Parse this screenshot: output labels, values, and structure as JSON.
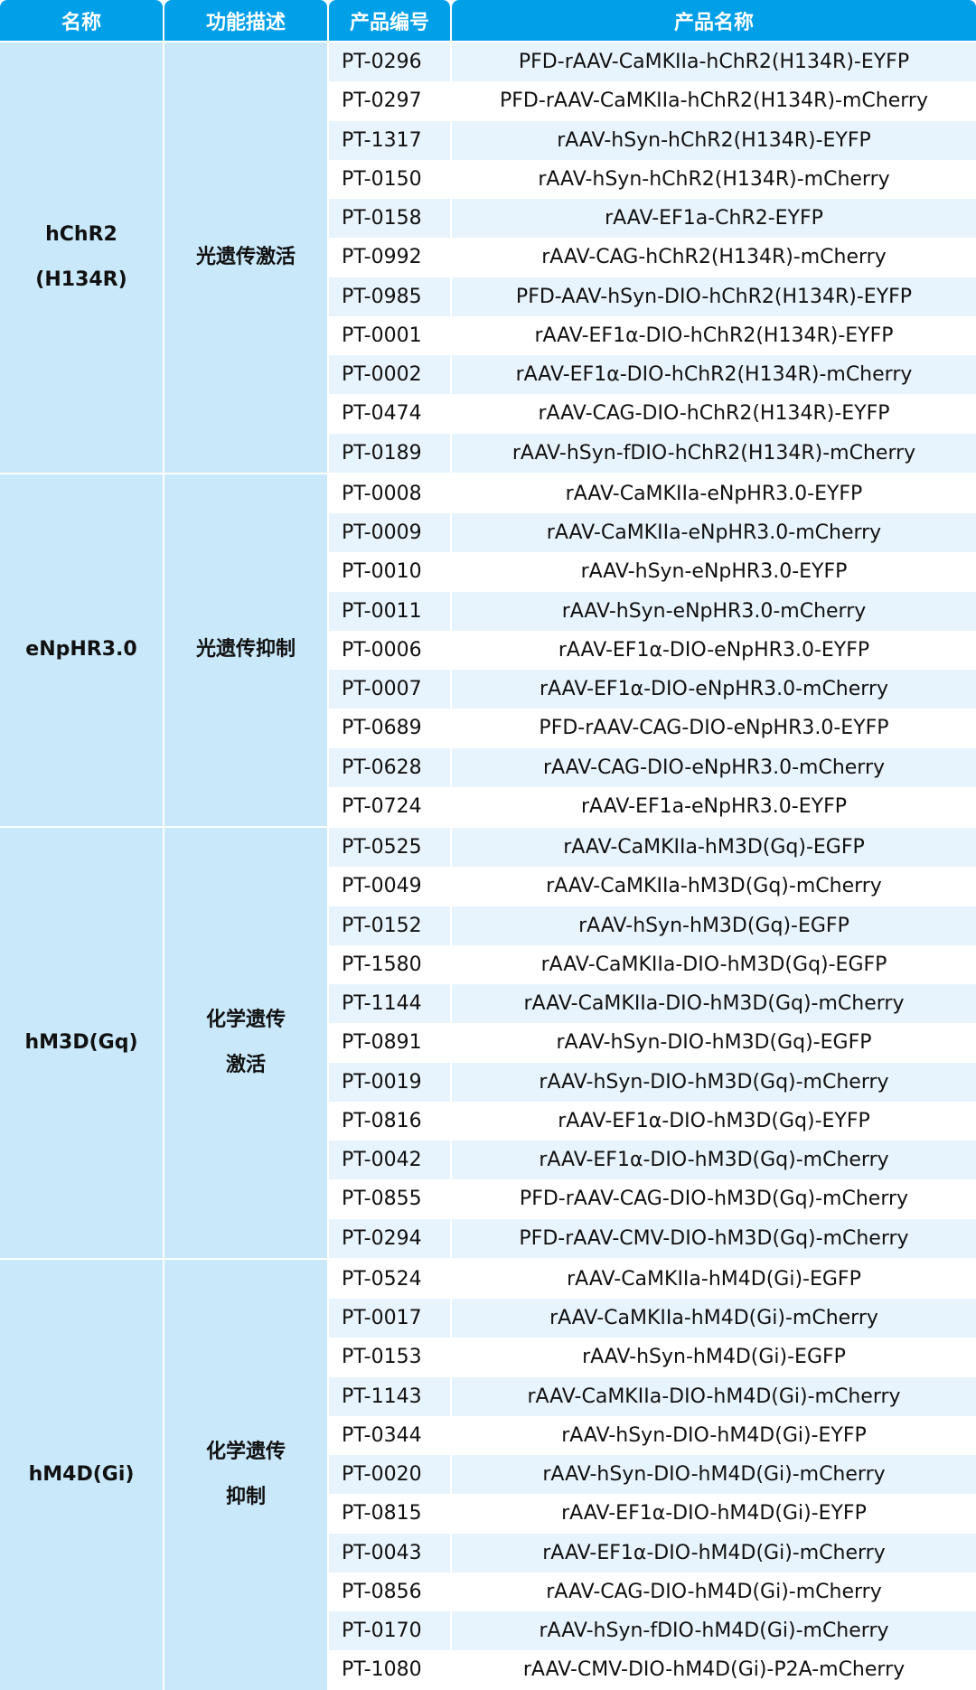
{
  "header": {
    "name": "名称",
    "function": "功能描述",
    "code": "产品编号",
    "product": "产品名称"
  },
  "colors": {
    "header": "#00a0e9",
    "group_cell": "#c9e8fa",
    "row_alt": "#e8f4fd"
  },
  "groups": [
    {
      "name": "hChR2\n(H134R)",
      "function": "光遗传激活",
      "products": [
        {
          "code": "PT-0296",
          "name": "PFD-rAAV-CaMKIIa-hChR2(H134R)-EYFP"
        },
        {
          "code": "PT-0297",
          "name": "PFD-rAAV-CaMKIIa-hChR2(H134R)-mCherry"
        },
        {
          "code": "PT-1317",
          "name": "rAAV-hSyn-hChR2(H134R)-EYFP"
        },
        {
          "code": "PT-0150",
          "name": "rAAV-hSyn-hChR2(H134R)-mCherry"
        },
        {
          "code": "PT-0158",
          "name": "rAAV-EF1a-ChR2-EYFP"
        },
        {
          "code": "PT-0992",
          "name": "rAAV-CAG-hChR2(H134R)-mCherry"
        },
        {
          "code": "PT-0985",
          "name": "PFD-AAV-hSyn-DIO-hChR2(H134R)-EYFP"
        },
        {
          "code": "PT-0001",
          "name": "rAAV-EF1α-DIO-hChR2(H134R)-EYFP"
        },
        {
          "code": "PT-0002",
          "name": "rAAV-EF1α-DIO-hChR2(H134R)-mCherry"
        },
        {
          "code": "PT-0474",
          "name": "rAAV-CAG-DIO-hChR2(H134R)-EYFP"
        },
        {
          "code": "PT-0189",
          "name": "rAAV-hSyn-fDIO-hChR2(H134R)-mCherry"
        }
      ]
    },
    {
      "name": "eNpHR3.0",
      "function": "光遗传抑制",
      "products": [
        {
          "code": "PT-0008",
          "name": "rAAV-CaMKIIa-eNpHR3.0-EYFP"
        },
        {
          "code": "PT-0009",
          "name": "rAAV-CaMKIIa-eNpHR3.0-mCherry"
        },
        {
          "code": "PT-0010",
          "name": "rAAV-hSyn-eNpHR3.0-EYFP"
        },
        {
          "code": "PT-0011",
          "name": "rAAV-hSyn-eNpHR3.0-mCherry"
        },
        {
          "code": "PT-0006",
          "name": "rAAV-EF1α-DIO-eNpHR3.0-EYFP"
        },
        {
          "code": "PT-0007",
          "name": "rAAV-EF1α-DIO-eNpHR3.0-mCherry"
        },
        {
          "code": "PT-0689",
          "name": "PFD-rAAV-CAG-DIO-eNpHR3.0-EYFP"
        },
        {
          "code": "PT-0628",
          "name": "rAAV-CAG-DIO-eNpHR3.0-mCherry"
        },
        {
          "code": "PT-0724",
          "name": "rAAV-EF1a-eNpHR3.0-EYFP"
        }
      ]
    },
    {
      "name": "hM3D(Gq)",
      "function": "化学遗传\n激活",
      "products": [
        {
          "code": "PT-0525",
          "name": "rAAV-CaMKIIa-hM3D(Gq)-EGFP"
        },
        {
          "code": "PT-0049",
          "name": "rAAV-CaMKIIa-hM3D(Gq)-mCherry"
        },
        {
          "code": "PT-0152",
          "name": "rAAV-hSyn-hM3D(Gq)-EGFP"
        },
        {
          "code": "PT-1580",
          "name": "rAAV-CaMKIIa-DIO-hM3D(Gq)-EGFP"
        },
        {
          "code": "PT-1144",
          "name": "rAAV-CaMKIIa-DIO-hM3D(Gq)-mCherry"
        },
        {
          "code": "PT-0891",
          "name": "rAAV-hSyn-DIO-hM3D(Gq)-EGFP"
        },
        {
          "code": "PT-0019",
          "name": "rAAV-hSyn-DIO-hM3D(Gq)-mCherry"
        },
        {
          "code": "PT-0816",
          "name": "rAAV-EF1α-DIO-hM3D(Gq)-EYFP"
        },
        {
          "code": "PT-0042",
          "name": "rAAV-EF1α-DIO-hM3D(Gq)-mCherry"
        },
        {
          "code": "PT-0855",
          "name": "PFD-rAAV-CAG-DIO-hM3D(Gq)-mCherry"
        },
        {
          "code": "PT-0294",
          "name": "PFD-rAAV-CMV-DIO-hM3D(Gq)-mCherry"
        }
      ]
    },
    {
      "name": "hM4D(Gi)",
      "function": "化学遗传\n抑制",
      "products": [
        {
          "code": "PT-0524",
          "name": "rAAV-CaMKIIa-hM4D(Gi)-EGFP"
        },
        {
          "code": "PT-0017",
          "name": "rAAV-CaMKIIa-hM4D(Gi)-mCherry"
        },
        {
          "code": "PT-0153",
          "name": "rAAV-hSyn-hM4D(Gi)-EGFP"
        },
        {
          "code": "PT-1143",
          "name": "rAAV-CaMKIIa-DIO-hM4D(Gi)-mCherry"
        },
        {
          "code": "PT-0344",
          "name": "rAAV-hSyn-DIO-hM4D(Gi)-EYFP"
        },
        {
          "code": "PT-0020",
          "name": "rAAV-hSyn-DIO-hM4D(Gi)-mCherry"
        },
        {
          "code": "PT-0815",
          "name": "rAAV-EF1α-DIO-hM4D(Gi)-EYFP"
        },
        {
          "code": "PT-0043",
          "name": "rAAV-EF1α-DIO-hM4D(Gi)-mCherry"
        },
        {
          "code": "PT-0856",
          "name": "rAAV-CAG-DIO-hM4D(Gi)-mCherry"
        },
        {
          "code": "PT-0170",
          "name": "rAAV-hSyn-fDIO-hM4D(Gi)-mCherry"
        },
        {
          "code": "PT-1080",
          "name": "rAAV-CMV-DIO-hM4D(Gi)-P2A-mCherry"
        }
      ]
    }
  ]
}
